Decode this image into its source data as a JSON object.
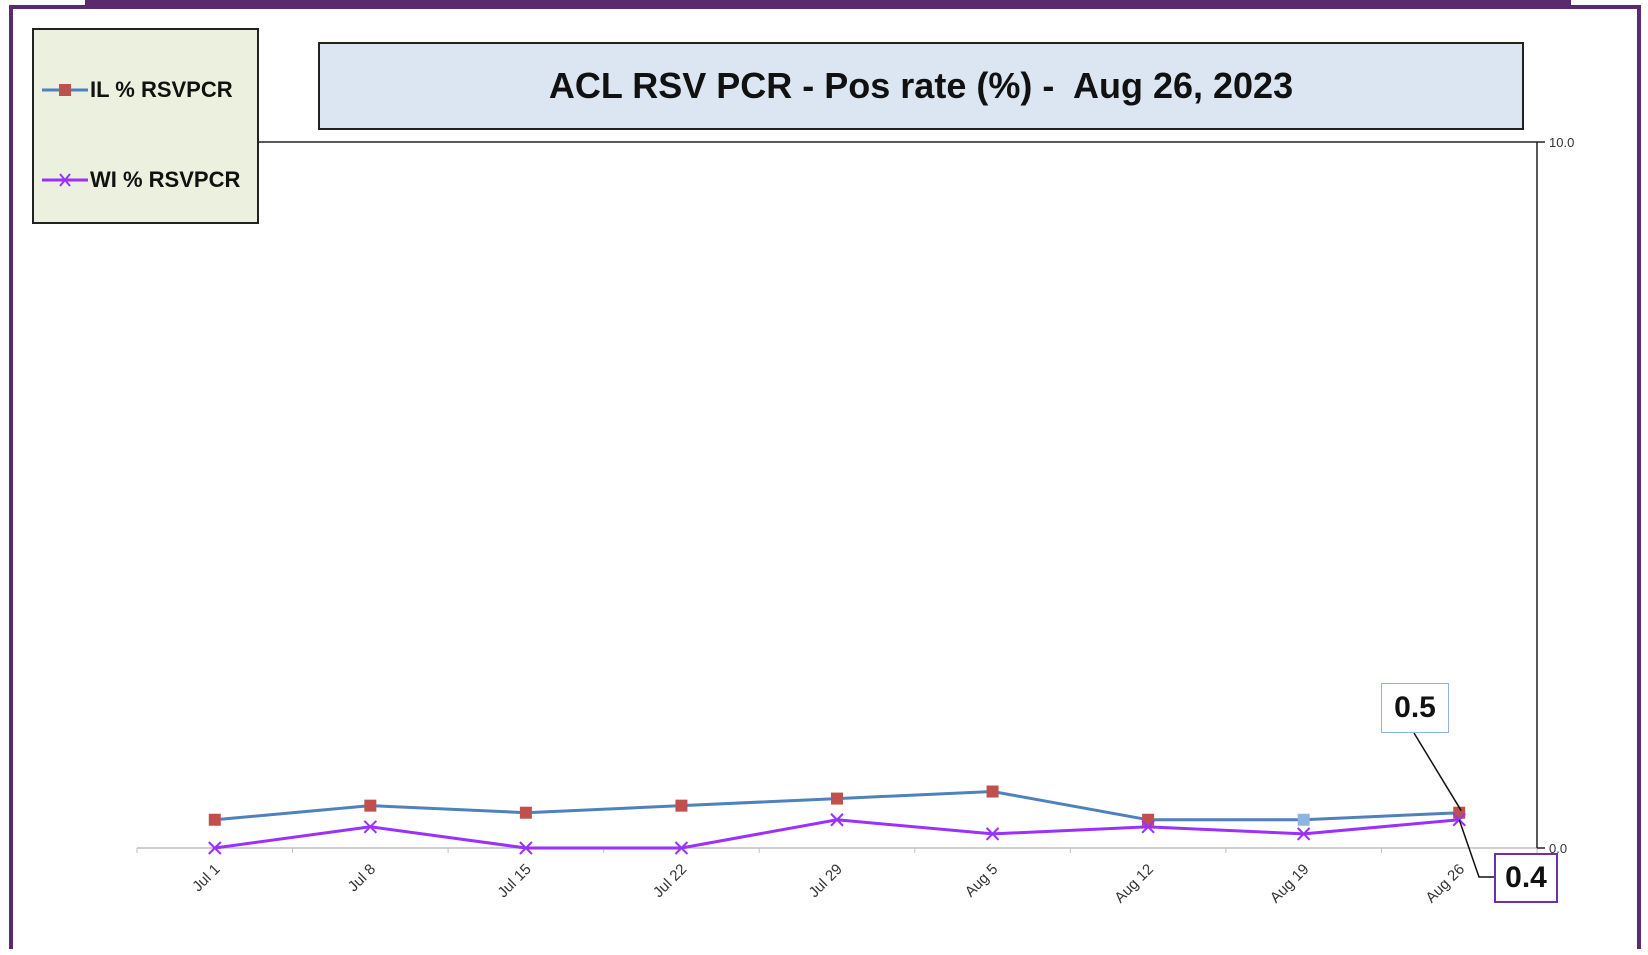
{
  "chart_data": {
    "type": "line",
    "title": "ACL RSV PCR - Pos rate (%) -  Aug 26, 2023",
    "categories": [
      "Jul 1",
      "Jul 8",
      "Jul 15",
      "Jul 22",
      "Jul 29",
      "Aug 5",
      "Aug 12",
      "Aug 19",
      "Aug 26"
    ],
    "series": [
      {
        "name": "IL % RSVPCR",
        "values": [
          0.4,
          0.6,
          0.5,
          0.6,
          0.7,
          0.8,
          0.4,
          0.4,
          0.5
        ],
        "color": "#4f81bd",
        "marker": "square",
        "marker_color": "#c0504d"
      },
      {
        "name": "WI % RSVPCR",
        "values": [
          0.0,
          0.3,
          0.0,
          0.0,
          0.4,
          0.2,
          0.3,
          0.2,
          0.4
        ],
        "color": "#9b30ff",
        "marker": "x"
      }
    ],
    "y_axis": {
      "position": "right",
      "ylim": [
        0,
        10
      ],
      "ticks": [
        "0.0",
        "10.0"
      ]
    },
    "legend": {
      "placement": "top-left"
    },
    "annotations": [
      {
        "series": "IL % RSVPCR",
        "category": "Aug 26",
        "label": "0.5"
      },
      {
        "series": "WI % RSVPCR",
        "category": "Aug 26",
        "label": "0.4"
      }
    ],
    "grid": false
  }
}
